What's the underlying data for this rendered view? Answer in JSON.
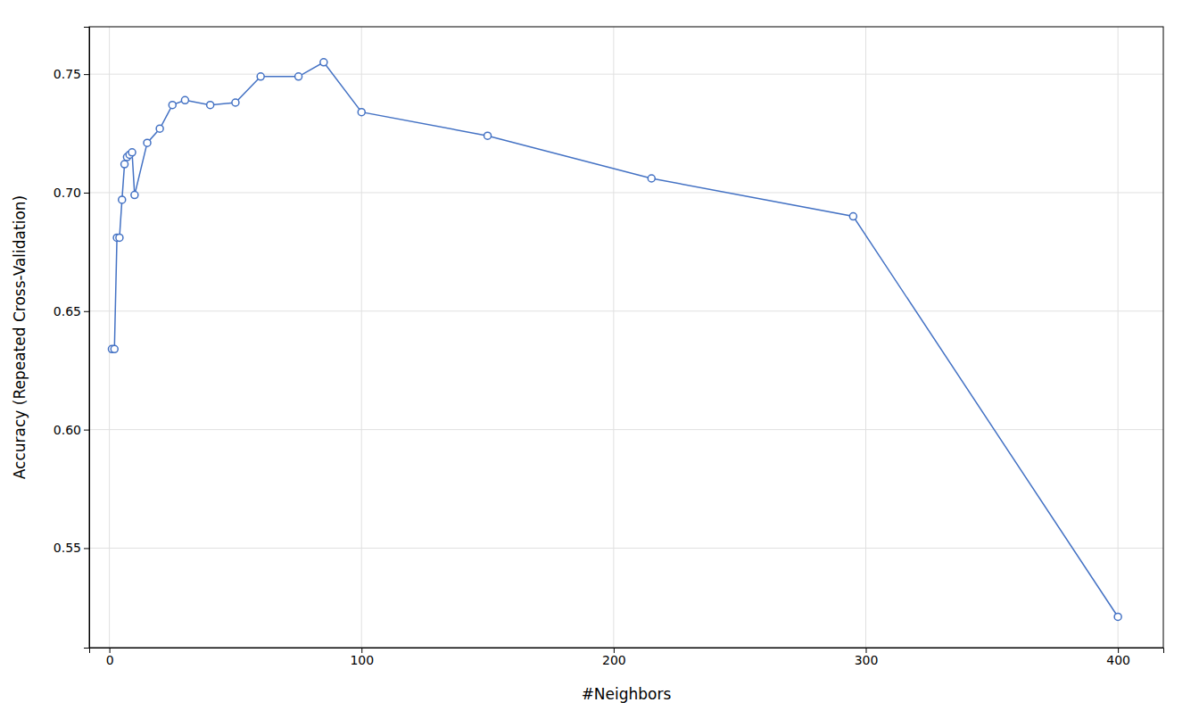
{
  "chart_data": {
    "type": "line",
    "xlabel": "#Neighbors",
    "ylabel": "Accuracy (Repeated Cross-Validation)",
    "x": [
      1,
      2,
      3,
      4,
      5,
      6,
      7,
      8,
      9,
      10,
      15,
      20,
      25,
      30,
      40,
      50,
      60,
      75,
      85,
      100,
      150,
      215,
      295,
      400
    ],
    "values": [
      0.634,
      0.634,
      0.681,
      0.681,
      0.697,
      0.712,
      0.715,
      0.716,
      0.717,
      0.699,
      0.721,
      0.727,
      0.737,
      0.739,
      0.737,
      0.738,
      0.749,
      0.749,
      0.755,
      0.734,
      0.724,
      0.706,
      0.69,
      0.521
    ],
    "color": "#4472C4",
    "marker": "circle",
    "xlim": [
      -8,
      418
    ],
    "ylim": [
      0.508,
      0.77
    ],
    "xticks": [
      0,
      100,
      200,
      300,
      400
    ],
    "yticks": [
      0.55,
      {
        "value": 0.6,
        "label": "0.60"
      },
      0.65,
      {
        "value": 0.7,
        "label": "0.70"
      },
      0.75
    ],
    "grid": true
  }
}
